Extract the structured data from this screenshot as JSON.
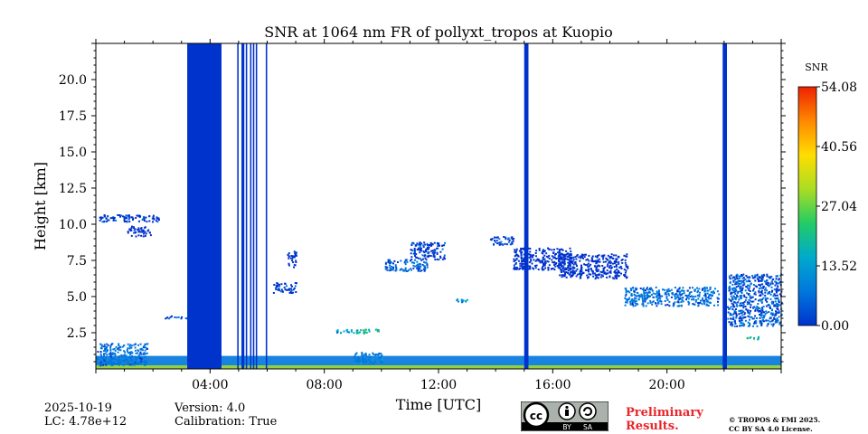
{
  "chart_data": {
    "type": "heatmap",
    "title": "SNR at 1064 nm FR of pollyxt_tropos at Kuopio",
    "xlabel": "Time [UTC]",
    "ylabel": "Height [km]",
    "x_unit": "hours UTC",
    "xlim": [
      0,
      24
    ],
    "ylim": [
      0,
      22.5
    ],
    "x_ticks": [
      {
        "value": 4,
        "label": "04:00"
      },
      {
        "value": 8,
        "label": "08:00"
      },
      {
        "value": 12,
        "label": "12:00"
      },
      {
        "value": 16,
        "label": "16:00"
      },
      {
        "value": 20,
        "label": "20:00"
      }
    ],
    "y_ticks": [
      {
        "value": 2.5,
        "label": "2.5"
      },
      {
        "value": 5.0,
        "label": "5.0"
      },
      {
        "value": 7.5,
        "label": "7.5"
      },
      {
        "value": 10.0,
        "label": "10.0"
      },
      {
        "value": 12.5,
        "label": "12.5"
      },
      {
        "value": 15.0,
        "label": "15.0"
      },
      {
        "value": 17.5,
        "label": "17.5"
      },
      {
        "value": 20.0,
        "label": "20.0"
      }
    ],
    "colorbar": {
      "label": "SNR",
      "min": 0.0,
      "max": 54.08,
      "ticks": [
        "0.00",
        "13.52",
        "27.04",
        "40.56",
        "54.08"
      ],
      "colormap": [
        "#0033cc",
        "#0077dd",
        "#00aacc",
        "#22cc66",
        "#aadd22",
        "#ffdd00",
        "#ff8800",
        "#ee2200"
      ]
    },
    "no_signal_periods": [
      {
        "start": 3.2,
        "end": 4.4
      },
      {
        "start": 4.95,
        "end": 5.0
      },
      {
        "start": 5.1,
        "end": 5.2
      },
      {
        "start": 5.25,
        "end": 5.3
      },
      {
        "start": 5.4,
        "end": 5.45
      },
      {
        "start": 5.5,
        "end": 5.55
      },
      {
        "start": 5.6,
        "end": 5.65
      },
      {
        "start": 5.95,
        "end": 6.0
      },
      {
        "start": 15.0,
        "end": 15.15
      },
      {
        "start": 21.95,
        "end": 22.1
      }
    ],
    "features": [
      {
        "x0": 0.1,
        "x1": 2.2,
        "y0": 10.2,
        "y1": 10.7,
        "snr": 3
      },
      {
        "x0": 1.1,
        "x1": 1.9,
        "y0": 9.2,
        "y1": 9.9,
        "snr": 2
      },
      {
        "x0": 2.4,
        "x1": 3.2,
        "y0": 3.5,
        "y1": 3.7,
        "snr": 4
      },
      {
        "x0": 6.2,
        "x1": 7.0,
        "y0": 5.3,
        "y1": 6.0,
        "snr": 3
      },
      {
        "x0": 6.7,
        "x1": 7.0,
        "y0": 7.0,
        "y1": 8.2,
        "snr": 2
      },
      {
        "x0": 8.4,
        "x1": 9.9,
        "y0": 2.5,
        "y1": 2.8,
        "snr": 18
      },
      {
        "x0": 10.1,
        "x1": 11.6,
        "y0": 6.8,
        "y1": 7.6,
        "snr": 5
      },
      {
        "x0": 11.0,
        "x1": 12.2,
        "y0": 7.6,
        "y1": 8.8,
        "snr": 3
      },
      {
        "x0": 12.6,
        "x1": 13.0,
        "y0": 4.6,
        "y1": 4.9,
        "snr": 12
      },
      {
        "x0": 13.8,
        "x1": 14.6,
        "y0": 8.6,
        "y1": 9.2,
        "snr": 3
      },
      {
        "x0": 14.6,
        "x1": 16.6,
        "y0": 6.9,
        "y1": 8.4,
        "snr": 2
      },
      {
        "x0": 16.2,
        "x1": 18.6,
        "y0": 6.3,
        "y1": 8.0,
        "snr": 2
      },
      {
        "x0": 18.5,
        "x1": 21.8,
        "y0": 4.4,
        "y1": 5.7,
        "snr": 6
      },
      {
        "x0": 22.1,
        "x1": 24.0,
        "y0": 3.0,
        "y1": 6.6,
        "snr": 4
      },
      {
        "x0": 22.7,
        "x1": 23.2,
        "y0": 2.1,
        "y1": 2.3,
        "snr": 22
      },
      {
        "x0": 0.0,
        "x1": 1.8,
        "y0": 0.3,
        "y1": 1.8,
        "snr": 6
      },
      {
        "x0": 9.0,
        "x1": 10.0,
        "y0": 0.4,
        "y1": 1.2,
        "snr": 8
      }
    ],
    "boundary_layer": {
      "top": 0.9,
      "snr": 8
    },
    "surface_layer": {
      "top": 0.25,
      "snr": 32
    }
  },
  "footer": {
    "date": "2025-10-19",
    "lidar_constant": "LC: 4.78e+12",
    "version": "Version: 4.0",
    "calibration": "Calibration: True",
    "preliminary_line1": "Preliminary",
    "preliminary_line2": "Results.",
    "copyright_line1": "© TROPOS & FMI 2025.",
    "copyright_line2": "CC BY SA 4.0 License.",
    "license_badge": {
      "by": "BY",
      "sa": "SA"
    }
  }
}
